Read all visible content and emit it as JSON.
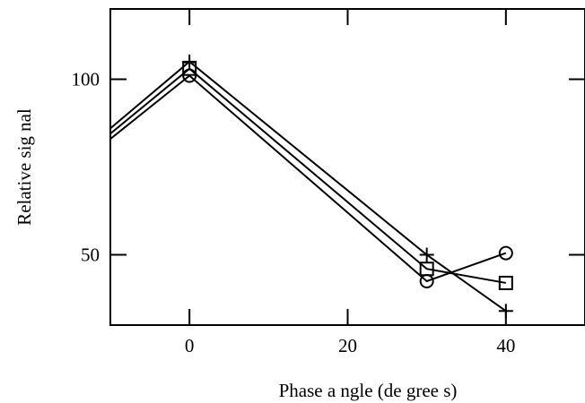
{
  "chart_data": {
    "type": "line",
    "title": "",
    "xlabel": "Phase a ngle (de gree s)",
    "ylabel": "Relative sig nal",
    "xlim": [
      -10,
      50
    ],
    "ylim": [
      30,
      120
    ],
    "x_ticks": [
      0,
      20,
      40
    ],
    "x_tick_labels": [
      "0",
      "20",
      "40"
    ],
    "y_ticks": [
      50,
      100
    ],
    "y_tick_labels": [
      "50",
      "100"
    ],
    "grid": false,
    "legend": "none",
    "series": [
      {
        "marker": "plus",
        "color": "#000000",
        "x": [
          -10,
          0,
          30,
          40
        ],
        "y": [
          86,
          105,
          50,
          34
        ]
      },
      {
        "marker": "square",
        "color": "#000000",
        "x": [
          -10,
          0,
          30,
          40
        ],
        "y": [
          84.5,
          103,
          46,
          42
        ]
      },
      {
        "marker": "circle",
        "color": "#000000",
        "x": [
          -10,
          0,
          30,
          40
        ],
        "y": [
          83,
          101,
          42.5,
          50.5
        ]
      }
    ]
  }
}
